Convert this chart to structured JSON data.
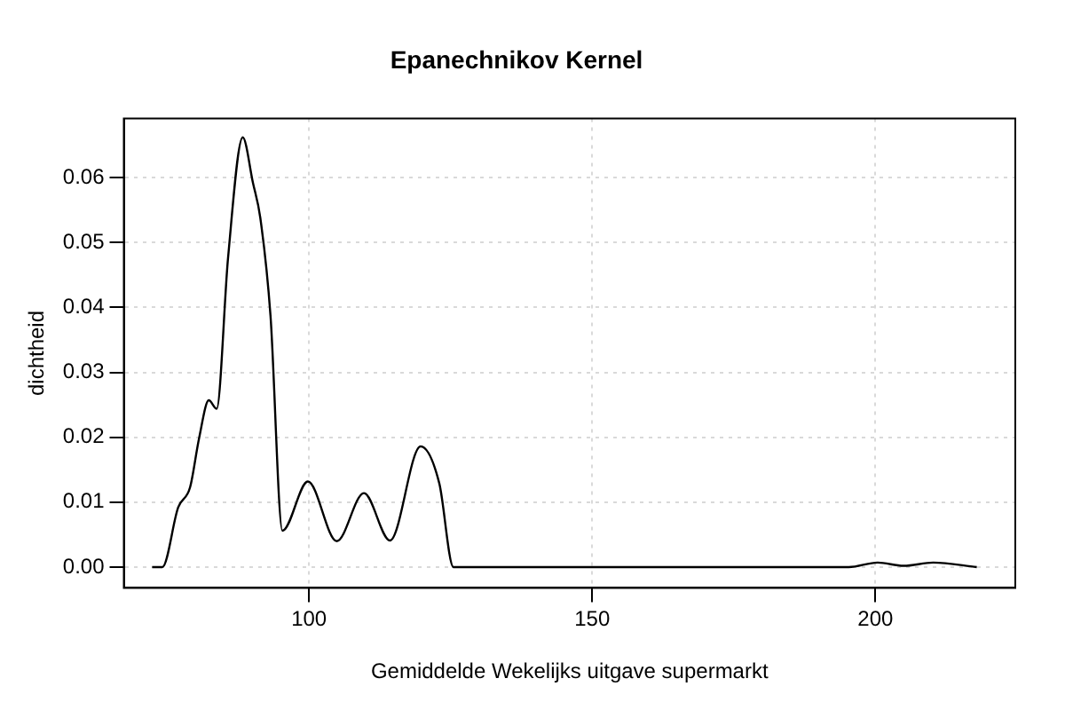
{
  "chart_data": {
    "type": "line",
    "title": "Epanechnikov Kernel",
    "xlabel": "Gemiddelde Wekelijks uitgave supermarkt",
    "ylabel": "dichtheid",
    "x": [
      72.3,
      74.1,
      76.9,
      79.0,
      80.6,
      82.3,
      83.7,
      85.7,
      88.3,
      90.1,
      91.4,
      93.2,
      95.3,
      99.8,
      104.9,
      109.7,
      114.3,
      119.7,
      123.0,
      125.5,
      195.3,
      200.4,
      205.0,
      210.2,
      217.9
    ],
    "series": [
      {
        "color": "#000000",
        "values": [
          0,
          0,
          0.0092,
          0.0123,
          0.0199,
          0.0257,
          0.0244,
          0.0476,
          0.0662,
          0.0592,
          0.0538,
          0.0387,
          0.0056,
          0.0132,
          0.004,
          0.0114,
          0.0041,
          0.0186,
          0.0129,
          0,
          0,
          0.0007,
          0.0002,
          0.0007,
          0
        ]
      }
    ],
    "xlim": [
      67.3,
      224.7
    ],
    "ylim": [
      -0.0032,
      0.0691
    ],
    "xticks": [
      100,
      150,
      200
    ],
    "yticks": [
      {
        "value": 0,
        "label": "0.00"
      },
      0.01,
      0.02,
      0.03,
      0.04,
      0.05,
      0.06
    ],
    "grid": true,
    "legend": false,
    "marker": "none",
    "line_style": "solid"
  }
}
